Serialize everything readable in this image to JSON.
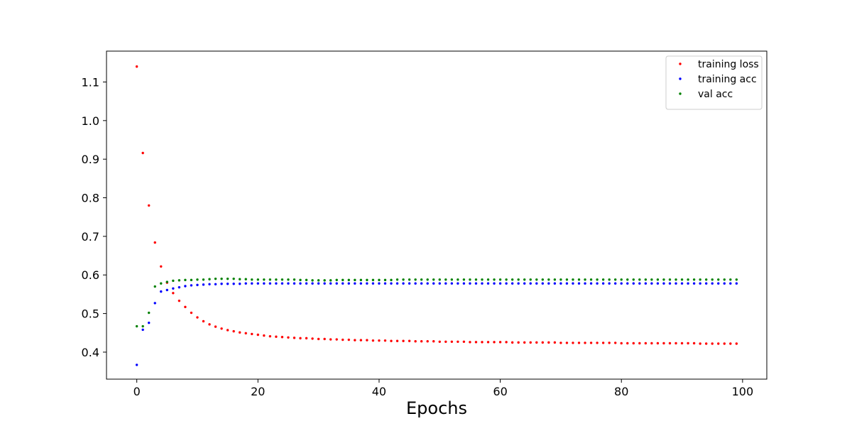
{
  "chart_data": {
    "type": "scatter",
    "title": "",
    "xlabel": "Epochs",
    "ylabel": "",
    "xlim": [
      -5,
      104
    ],
    "ylim": [
      0.33,
      1.18
    ],
    "xticks": [
      0,
      20,
      40,
      60,
      80,
      100
    ],
    "yticks": [
      0.4,
      0.5,
      0.6,
      0.7,
      0.8,
      0.9,
      1.0,
      1.1
    ],
    "grid": false,
    "legend_position": "top-right",
    "legend_entries": [
      "training loss",
      "training acc",
      "val acc"
    ],
    "series": [
      {
        "name": "training loss",
        "color": "#ff0000",
        "x": [
          0,
          1,
          2,
          3,
          4,
          5,
          6,
          7,
          8,
          9,
          10,
          11,
          12,
          13,
          14,
          15,
          16,
          17,
          18,
          19,
          20,
          21,
          22,
          23,
          24,
          25,
          26,
          27,
          28,
          29,
          30,
          31,
          32,
          33,
          34,
          35,
          36,
          37,
          38,
          39,
          40,
          41,
          42,
          43,
          44,
          45,
          46,
          47,
          48,
          49,
          50,
          51,
          52,
          53,
          54,
          55,
          56,
          57,
          58,
          59,
          60,
          61,
          62,
          63,
          64,
          65,
          66,
          67,
          68,
          69,
          70,
          71,
          72,
          73,
          74,
          75,
          76,
          77,
          78,
          79,
          80,
          81,
          82,
          83,
          84,
          85,
          86,
          87,
          88,
          89,
          90,
          91,
          92,
          93,
          94,
          95,
          96,
          97,
          98,
          99
        ],
        "y": [
          1.14,
          0.916,
          0.78,
          0.684,
          0.622,
          0.58,
          0.553,
          0.533,
          0.517,
          0.502,
          0.49,
          0.48,
          0.472,
          0.466,
          0.461,
          0.457,
          0.454,
          0.451,
          0.449,
          0.447,
          0.445,
          0.443,
          0.441,
          0.44,
          0.439,
          0.438,
          0.437,
          0.436,
          0.436,
          0.435,
          0.434,
          0.434,
          0.433,
          0.433,
          0.432,
          0.432,
          0.431,
          0.431,
          0.431,
          0.43,
          0.43,
          0.43,
          0.429,
          0.429,
          0.429,
          0.429,
          0.428,
          0.428,
          0.428,
          0.428,
          0.427,
          0.427,
          0.427,
          0.427,
          0.427,
          0.426,
          0.426,
          0.426,
          0.426,
          0.426,
          0.426,
          0.426,
          0.425,
          0.425,
          0.425,
          0.425,
          0.425,
          0.425,
          0.425,
          0.425,
          0.424,
          0.424,
          0.424,
          0.424,
          0.424,
          0.424,
          0.424,
          0.424,
          0.424,
          0.424,
          0.423,
          0.423,
          0.423,
          0.423,
          0.423,
          0.423,
          0.423,
          0.423,
          0.423,
          0.423,
          0.423,
          0.423,
          0.423,
          0.422,
          0.422,
          0.422,
          0.422,
          0.422,
          0.422,
          0.422
        ]
      },
      {
        "name": "training acc",
        "color": "#0000ff",
        "x": [
          0,
          1,
          2,
          3,
          4,
          5,
          6,
          7,
          8,
          9,
          10,
          11,
          12,
          13,
          14,
          15,
          16,
          17,
          18,
          19,
          20,
          21,
          22,
          23,
          24,
          25,
          26,
          27,
          28,
          29,
          30,
          31,
          32,
          33,
          34,
          35,
          36,
          37,
          38,
          39,
          40,
          41,
          42,
          43,
          44,
          45,
          46,
          47,
          48,
          49,
          50,
          51,
          52,
          53,
          54,
          55,
          56,
          57,
          58,
          59,
          60,
          61,
          62,
          63,
          64,
          65,
          66,
          67,
          68,
          69,
          70,
          71,
          72,
          73,
          74,
          75,
          76,
          77,
          78,
          79,
          80,
          81,
          82,
          83,
          84,
          85,
          86,
          87,
          88,
          89,
          90,
          91,
          92,
          93,
          94,
          95,
          96,
          97,
          98,
          99
        ],
        "y": [
          0.367,
          0.458,
          0.476,
          0.527,
          0.557,
          0.561,
          0.565,
          0.568,
          0.571,
          0.573,
          0.574,
          0.575,
          0.576,
          0.576,
          0.577,
          0.577,
          0.577,
          0.577,
          0.578,
          0.578,
          0.578,
          0.578,
          0.578,
          0.578,
          0.578,
          0.578,
          0.578,
          0.578,
          0.578,
          0.578,
          0.578,
          0.578,
          0.578,
          0.578,
          0.578,
          0.578,
          0.578,
          0.578,
          0.578,
          0.578,
          0.578,
          0.578,
          0.578,
          0.578,
          0.578,
          0.578,
          0.578,
          0.578,
          0.578,
          0.578,
          0.578,
          0.578,
          0.578,
          0.578,
          0.578,
          0.578,
          0.578,
          0.578,
          0.578,
          0.578,
          0.578,
          0.578,
          0.578,
          0.578,
          0.578,
          0.578,
          0.578,
          0.578,
          0.578,
          0.578,
          0.578,
          0.578,
          0.578,
          0.578,
          0.578,
          0.578,
          0.578,
          0.578,
          0.578,
          0.578,
          0.578,
          0.578,
          0.578,
          0.578,
          0.578,
          0.578,
          0.578,
          0.578,
          0.578,
          0.578,
          0.578,
          0.578,
          0.578,
          0.578,
          0.578,
          0.578,
          0.578,
          0.578,
          0.578,
          0.578
        ]
      },
      {
        "name": "val acc",
        "color": "#008000",
        "x": [
          0,
          1,
          2,
          3,
          4,
          5,
          6,
          7,
          8,
          9,
          10,
          11,
          12,
          13,
          14,
          15,
          16,
          17,
          18,
          19,
          20,
          21,
          22,
          23,
          24,
          25,
          26,
          27,
          28,
          29,
          30,
          31,
          32,
          33,
          34,
          35,
          36,
          37,
          38,
          39,
          40,
          41,
          42,
          43,
          44,
          45,
          46,
          47,
          48,
          49,
          50,
          51,
          52,
          53,
          54,
          55,
          56,
          57,
          58,
          59,
          60,
          61,
          62,
          63,
          64,
          65,
          66,
          67,
          68,
          69,
          70,
          71,
          72,
          73,
          74,
          75,
          76,
          77,
          78,
          79,
          80,
          81,
          82,
          83,
          84,
          85,
          86,
          87,
          88,
          89,
          90,
          91,
          92,
          93,
          94,
          95,
          96,
          97,
          98,
          99
        ],
        "y": [
          0.467,
          0.467,
          0.502,
          0.57,
          0.578,
          0.582,
          0.585,
          0.586,
          0.587,
          0.587,
          0.588,
          0.588,
          0.589,
          0.59,
          0.59,
          0.59,
          0.59,
          0.589,
          0.589,
          0.588,
          0.588,
          0.588,
          0.588,
          0.588,
          0.588,
          0.588,
          0.588,
          0.587,
          0.587,
          0.586,
          0.586,
          0.586,
          0.586,
          0.587,
          0.587,
          0.587,
          0.587,
          0.587,
          0.587,
          0.587,
          0.587,
          0.587,
          0.587,
          0.588,
          0.588,
          0.588,
          0.588,
          0.588,
          0.588,
          0.588,
          0.588,
          0.588,
          0.588,
          0.588,
          0.588,
          0.588,
          0.588,
          0.588,
          0.588,
          0.588,
          0.588,
          0.588,
          0.588,
          0.588,
          0.588,
          0.588,
          0.588,
          0.588,
          0.588,
          0.588,
          0.588,
          0.588,
          0.588,
          0.588,
          0.588,
          0.588,
          0.588,
          0.588,
          0.588,
          0.588,
          0.588,
          0.588,
          0.588,
          0.588,
          0.588,
          0.588,
          0.588,
          0.588,
          0.588,
          0.588,
          0.588,
          0.588,
          0.588,
          0.588,
          0.588,
          0.588,
          0.588,
          0.588,
          0.588,
          0.588
        ]
      }
    ]
  }
}
